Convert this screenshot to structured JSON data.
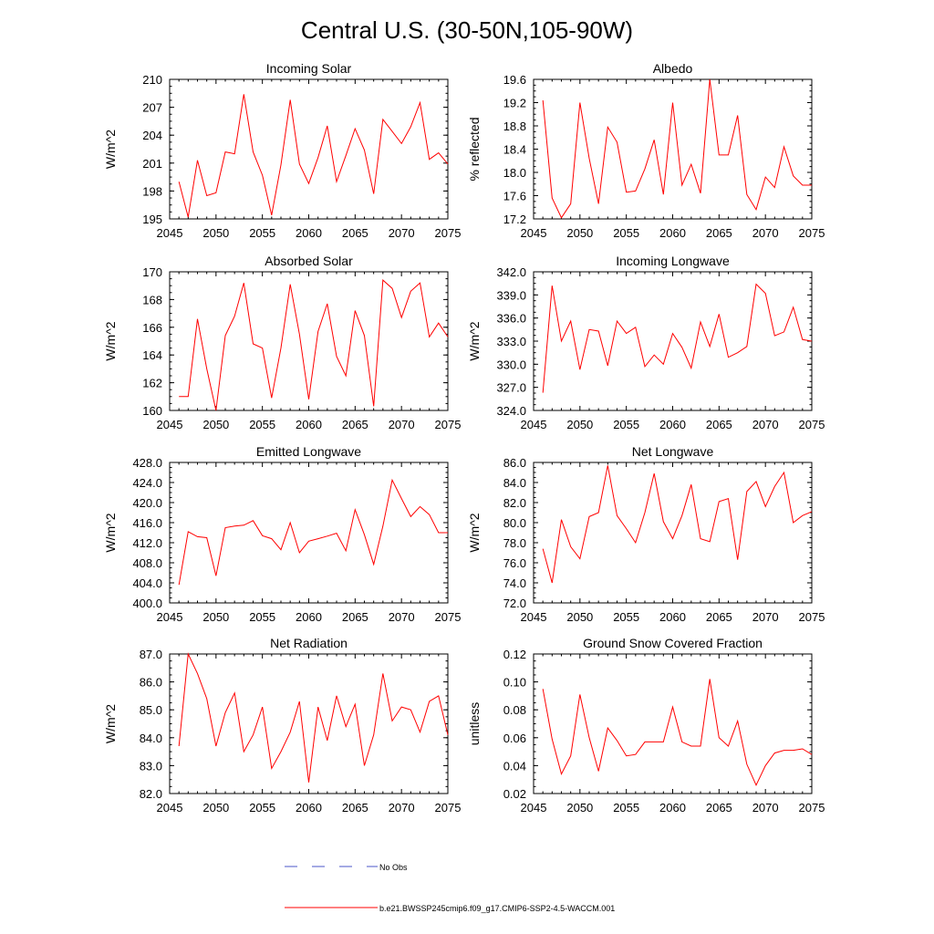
{
  "title": "Central U.S. (30-50N,105-90W)",
  "colors": {
    "series": "#ff0000",
    "obs": "#4a55c8",
    "axis": "#000000"
  },
  "legend": {
    "obs_label": "No Obs",
    "model_label": "b.e21.BWSSP245cmip6.f09_g17.CMIP6-SSP2-4.5-WACCM.001"
  },
  "chart_data": [
    {
      "type": "line",
      "title": "Incoming Solar",
      "xlabel": "",
      "ylabel": "W/m^2",
      "xlim": [
        2045,
        2075
      ],
      "ylim": [
        195,
        210
      ],
      "xticks": [
        2045,
        2050,
        2055,
        2060,
        2065,
        2070,
        2075
      ],
      "yticks": [
        "195",
        "198",
        "201",
        "204",
        "207",
        "210"
      ],
      "x": [
        2046,
        2047,
        2048,
        2049,
        2050,
        2051,
        2052,
        2053,
        2054,
        2055,
        2056,
        2057,
        2058,
        2059,
        2060,
        2061,
        2062,
        2063,
        2064,
        2065,
        2066,
        2067,
        2068,
        2069,
        2070,
        2071,
        2072,
        2073,
        2074,
        2075
      ],
      "y": [
        199.0,
        195.2,
        201.3,
        197.5,
        197.8,
        202.2,
        202.0,
        208.4,
        202.2,
        199.7,
        195.4,
        200.8,
        207.8,
        200.9,
        198.8,
        201.6,
        205.0,
        199.0,
        201.8,
        204.7,
        202.4,
        197.7,
        205.7,
        204.4,
        203.1,
        204.9,
        207.5,
        201.4,
        202.1,
        200.9
      ]
    },
    {
      "type": "line",
      "title": "Albedo",
      "xlabel": "",
      "ylabel": "% reflected",
      "xlim": [
        2045,
        2075
      ],
      "ylim": [
        17.2,
        19.6
      ],
      "xticks": [
        2045,
        2050,
        2055,
        2060,
        2065,
        2070,
        2075
      ],
      "yticks": [
        "17.2",
        "17.6",
        "18.0",
        "18.4",
        "18.8",
        "19.2",
        "19.6"
      ],
      "x": [
        2046,
        2047,
        2048,
        2049,
        2050,
        2051,
        2052,
        2053,
        2054,
        2055,
        2056,
        2057,
        2058,
        2059,
        2060,
        2061,
        2062,
        2063,
        2064,
        2065,
        2066,
        2067,
        2068,
        2069,
        2070,
        2071,
        2072,
        2073,
        2074,
        2075
      ],
      "y": [
        19.24,
        17.56,
        17.22,
        17.46,
        19.2,
        18.24,
        17.46,
        18.78,
        18.52,
        17.66,
        17.68,
        18.06,
        18.56,
        17.62,
        19.2,
        17.78,
        18.14,
        17.64,
        19.6,
        18.3,
        18.3,
        18.98,
        17.62,
        17.36,
        17.92,
        17.74,
        18.44,
        17.94,
        17.78,
        17.78
      ]
    },
    {
      "type": "line",
      "title": "Absorbed Solar",
      "xlabel": "",
      "ylabel": "W/m^2",
      "xlim": [
        2045,
        2075
      ],
      "ylim": [
        160,
        170
      ],
      "xticks": [
        2045,
        2050,
        2055,
        2060,
        2065,
        2070,
        2075
      ],
      "yticks": [
        "160",
        "162",
        "164",
        "166",
        "168",
        "170"
      ],
      "x": [
        2046,
        2047,
        2048,
        2049,
        2050,
        2051,
        2052,
        2053,
        2054,
        2055,
        2056,
        2057,
        2058,
        2059,
        2060,
        2061,
        2062,
        2063,
        2064,
        2065,
        2066,
        2067,
        2068,
        2069,
        2070,
        2071,
        2072,
        2073,
        2074,
        2075
      ],
      "y": [
        161.0,
        161.0,
        166.6,
        163.0,
        160.0,
        165.4,
        166.8,
        169.2,
        164.8,
        164.5,
        160.9,
        164.5,
        169.1,
        165.5,
        160.8,
        165.7,
        167.7,
        163.9,
        162.5,
        167.2,
        165.4,
        160.3,
        169.4,
        168.8,
        166.7,
        168.6,
        169.2,
        165.3,
        166.3,
        165.3
      ]
    },
    {
      "type": "line",
      "title": "Incoming Longwave",
      "xlabel": "",
      "ylabel": "W/m^2",
      "xlim": [
        2045,
        2075
      ],
      "ylim": [
        324.0,
        342.0
      ],
      "xticks": [
        2045,
        2050,
        2055,
        2060,
        2065,
        2070,
        2075
      ],
      "yticks": [
        "324.0",
        "327.0",
        "330.0",
        "333.0",
        "336.0",
        "339.0",
        "342.0"
      ],
      "x": [
        2046,
        2047,
        2048,
        2049,
        2050,
        2051,
        2052,
        2053,
        2054,
        2055,
        2056,
        2057,
        2058,
        2059,
        2060,
        2061,
        2062,
        2063,
        2064,
        2065,
        2066,
        2067,
        2068,
        2069,
        2070,
        2071,
        2072,
        2073,
        2074,
        2075
      ],
      "y": [
        326.3,
        340.2,
        333.0,
        335.6,
        329.3,
        334.5,
        334.3,
        329.8,
        335.6,
        334.0,
        334.8,
        329.7,
        331.2,
        330.0,
        334.0,
        332.2,
        329.5,
        335.5,
        332.3,
        336.5,
        330.9,
        331.5,
        332.3,
        340.4,
        339.2,
        333.7,
        334.2,
        337.4,
        333.2,
        333.0
      ]
    },
    {
      "type": "line",
      "title": "Emitted Longwave",
      "xlabel": "",
      "ylabel": "W/m^2",
      "xlim": [
        2045,
        2075
      ],
      "ylim": [
        400.0,
        428.0
      ],
      "xticks": [
        2045,
        2050,
        2055,
        2060,
        2065,
        2070,
        2075
      ],
      "yticks": [
        "400.0",
        "404.0",
        "408.0",
        "412.0",
        "416.0",
        "420.0",
        "424.0",
        "428.0"
      ],
      "x": [
        2046,
        2047,
        2048,
        2049,
        2050,
        2051,
        2052,
        2053,
        2054,
        2055,
        2056,
        2057,
        2058,
        2059,
        2060,
        2061,
        2062,
        2063,
        2064,
        2065,
        2066,
        2067,
        2068,
        2069,
        2070,
        2071,
        2072,
        2073,
        2074,
        2075
      ],
      "y": [
        403.6,
        414.2,
        413.2,
        413.0,
        405.4,
        415.0,
        415.3,
        415.5,
        416.4,
        413.4,
        412.8,
        410.6,
        416.0,
        410.0,
        412.3,
        412.8,
        413.3,
        413.9,
        410.4,
        418.6,
        413.6,
        407.7,
        415.3,
        424.5,
        420.8,
        417.2,
        419.2,
        417.6,
        414.0,
        414.0
      ]
    },
    {
      "type": "line",
      "title": "Net Longwave",
      "xlabel": "",
      "ylabel": "W/m^2",
      "xlim": [
        2045,
        2075
      ],
      "ylim": [
        72.0,
        86.0
      ],
      "xticks": [
        2045,
        2050,
        2055,
        2060,
        2065,
        2070,
        2075
      ],
      "yticks": [
        "72.0",
        "74.0",
        "76.0",
        "78.0",
        "80.0",
        "82.0",
        "84.0",
        "86.0"
      ],
      "x": [
        2046,
        2047,
        2048,
        2049,
        2050,
        2051,
        2052,
        2053,
        2054,
        2055,
        2056,
        2057,
        2058,
        2059,
        2060,
        2061,
        2062,
        2063,
        2064,
        2065,
        2066,
        2067,
        2068,
        2069,
        2070,
        2071,
        2072,
        2073,
        2074,
        2075
      ],
      "y": [
        77.4,
        74.0,
        80.3,
        77.6,
        76.4,
        80.6,
        81.0,
        85.7,
        80.7,
        79.4,
        78.0,
        81.0,
        84.9,
        80.1,
        78.4,
        80.7,
        83.8,
        78.4,
        78.1,
        82.1,
        82.4,
        76.3,
        83.1,
        84.1,
        81.6,
        83.6,
        85.0,
        80.0,
        80.7,
        81.1
      ]
    },
    {
      "type": "line",
      "title": "Net Radiation",
      "xlabel": "",
      "ylabel": "W/m^2",
      "xlim": [
        2045,
        2075
      ],
      "ylim": [
        82.0,
        87.0
      ],
      "xticks": [
        2045,
        2050,
        2055,
        2060,
        2065,
        2070,
        2075
      ],
      "yticks": [
        "82.0",
        "83.0",
        "84.0",
        "85.0",
        "86.0",
        "87.0"
      ],
      "x": [
        2046,
        2047,
        2048,
        2049,
        2050,
        2051,
        2052,
        2053,
        2054,
        2055,
        2056,
        2057,
        2058,
        2059,
        2060,
        2061,
        2062,
        2063,
        2064,
        2065,
        2066,
        2067,
        2068,
        2069,
        2070,
        2071,
        2072,
        2073,
        2074,
        2075
      ],
      "y": [
        83.7,
        87.0,
        86.3,
        85.4,
        83.7,
        84.9,
        85.6,
        83.5,
        84.1,
        85.1,
        82.9,
        83.5,
        84.2,
        85.3,
        82.4,
        85.1,
        83.9,
        85.5,
        84.4,
        85.2,
        83.0,
        84.1,
        86.3,
        84.6,
        85.1,
        85.0,
        84.2,
        85.3,
        85.5,
        84.1
      ]
    },
    {
      "type": "line",
      "title": "Ground Snow Covered Fraction",
      "xlabel": "",
      "ylabel": "unitless",
      "xlim": [
        2045,
        2075
      ],
      "ylim": [
        0.02,
        0.12
      ],
      "xticks": [
        2045,
        2050,
        2055,
        2060,
        2065,
        2070,
        2075
      ],
      "yticks": [
        "0.02",
        "0.04",
        "0.06",
        "0.08",
        "0.10",
        "0.12"
      ],
      "x": [
        2046,
        2047,
        2048,
        2049,
        2050,
        2051,
        2052,
        2053,
        2054,
        2055,
        2056,
        2057,
        2058,
        2059,
        2060,
        2061,
        2062,
        2063,
        2064,
        2065,
        2066,
        2067,
        2068,
        2069,
        2070,
        2071,
        2072,
        2073,
        2074,
        2075
      ],
      "y": [
        0.095,
        0.059,
        0.034,
        0.047,
        0.091,
        0.06,
        0.036,
        0.067,
        0.058,
        0.047,
        0.048,
        0.057,
        0.057,
        0.057,
        0.082,
        0.057,
        0.054,
        0.054,
        0.102,
        0.06,
        0.054,
        0.072,
        0.041,
        0.026,
        0.04,
        0.049,
        0.051,
        0.051,
        0.052,
        0.048
      ]
    }
  ]
}
